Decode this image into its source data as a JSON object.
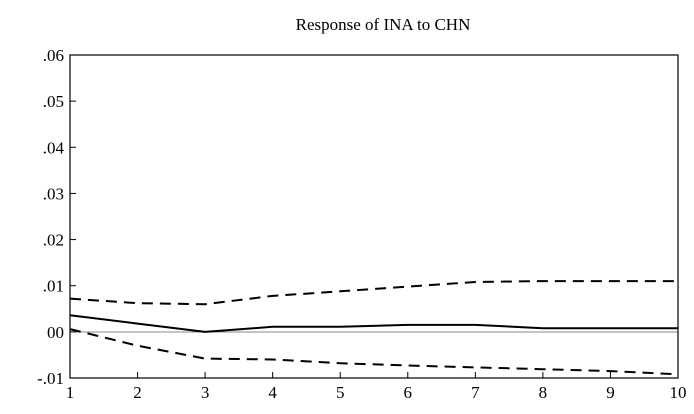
{
  "chart_data": {
    "type": "line",
    "title": "Response of INA to CHN",
    "xlabel": "",
    "ylabel": "",
    "xlim": [
      1,
      10
    ],
    "ylim": [
      -0.01,
      0.06
    ],
    "x_ticks": [
      1,
      2,
      3,
      4,
      5,
      6,
      7,
      8,
      9,
      10
    ],
    "x_tick_labels": [
      "1",
      "2",
      "3",
      "4",
      "5",
      "6",
      "7",
      "8",
      "9",
      "10"
    ],
    "y_ticks": [
      0.06,
      0.05,
      0.04,
      0.03,
      0.02,
      0.01,
      0.0,
      -0.01
    ],
    "y_tick_labels": [
      ".06",
      ".05",
      ".04",
      ".03",
      ".02",
      ".01",
      "00",
      "-.01"
    ],
    "grid": false,
    "zero_line": true,
    "x": [
      1,
      2,
      3,
      4,
      5,
      6,
      7,
      8,
      9,
      10
    ],
    "series": [
      {
        "role": "response",
        "style": "solid",
        "color": "#000000",
        "values": [
          0.0036,
          0.0018,
          0.0,
          0.0011,
          0.0011,
          0.0015,
          0.0015,
          0.0008,
          0.0008,
          0.0008
        ]
      },
      {
        "role": "upper-band",
        "style": "dashed",
        "color": "#000000",
        "values": [
          0.0072,
          0.0062,
          0.006,
          0.0078,
          0.0088,
          0.0098,
          0.0108,
          0.011,
          0.011,
          0.011
        ]
      },
      {
        "role": "lower-band",
        "style": "dashed",
        "color": "#000000",
        "values": [
          0.0006,
          -0.003,
          -0.0058,
          -0.006,
          -0.0068,
          -0.0073,
          -0.0077,
          -0.0081,
          -0.0085,
          -0.0092
        ]
      }
    ]
  }
}
